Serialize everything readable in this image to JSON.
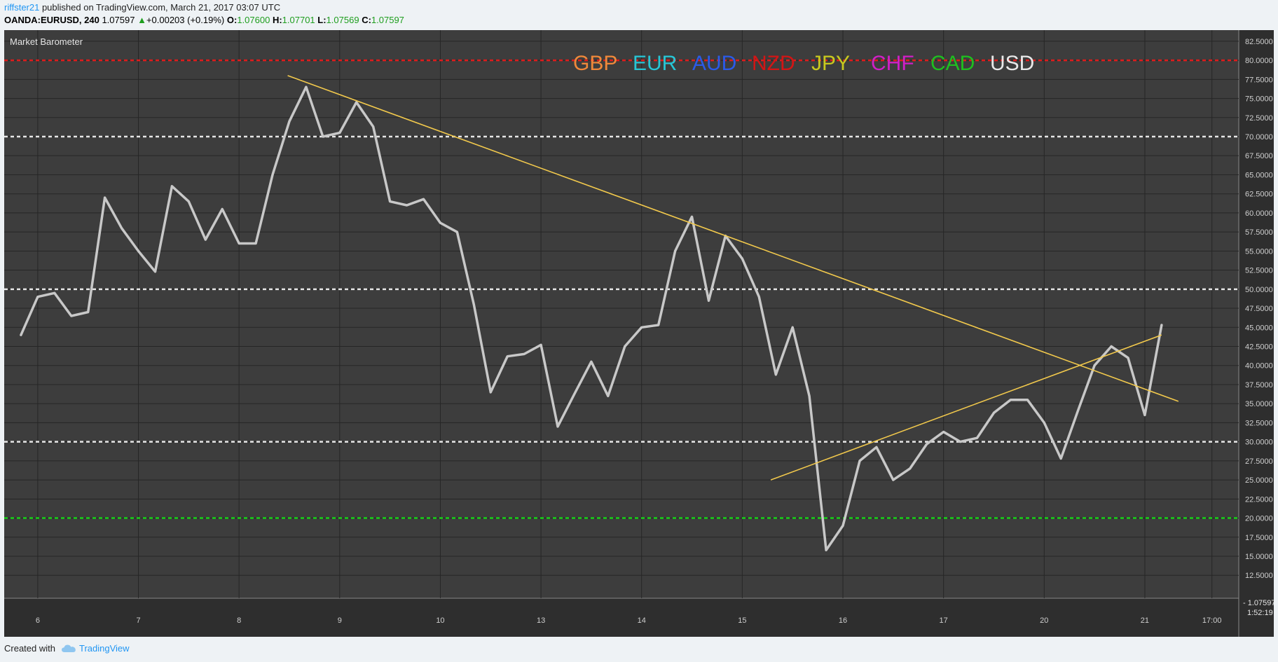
{
  "header": {
    "user": "riffster21",
    "published_text": " published on TradingView.com, March 21, 2017 03:07 UTC"
  },
  "quote": {
    "symbol": "OANDA:EURUSD, 240",
    "price": "1.07597",
    "change": "+0.00203 (+0.19%)",
    "open_label": "O:",
    "open": "1.07600",
    "high_label": "H:",
    "high": "1.07701",
    "low_label": "L:",
    "low": "1.07569",
    "close_label": "C:",
    "close": "1.07597"
  },
  "footer": {
    "created_with": "Created with",
    "brand": "TradingView"
  },
  "chart_data": {
    "type": "line",
    "title": "Market Barometer",
    "ylim": [
      12.5,
      83.5
    ],
    "grid": true,
    "y_ticks": [
      "12.5000",
      "15.0000",
      "17.5000",
      "20.0000",
      "22.5000",
      "25.0000",
      "27.5000",
      "30.0000",
      "32.5000",
      "35.0000",
      "37.5000",
      "40.0000",
      "42.5000",
      "45.0000",
      "47.5000",
      "50.0000",
      "52.5000",
      "55.0000",
      "57.5000",
      "60.0000",
      "62.5000",
      "65.0000",
      "67.5000",
      "70.0000",
      "72.5000",
      "75.0000",
      "77.5000",
      "80.0000",
      "82.5000"
    ],
    "x_ticks": [
      {
        "label": "6",
        "x": 1
      },
      {
        "label": "7",
        "x": 7
      },
      {
        "label": "8",
        "x": 13
      },
      {
        "label": "9",
        "x": 19
      },
      {
        "label": "10",
        "x": 25
      },
      {
        "label": "13",
        "x": 31
      },
      {
        "label": "14",
        "x": 37
      },
      {
        "label": "15",
        "x": 43
      },
      {
        "label": "16",
        "x": 49
      },
      {
        "label": "17",
        "x": 55
      },
      {
        "label": "20",
        "x": 61
      },
      {
        "label": "21",
        "x": 67
      },
      {
        "label": "17:00",
        "x": 71
      }
    ],
    "x_range": [
      -1,
      72.6
    ],
    "legend": [
      {
        "name": "GBP",
        "color": "#f0883a"
      },
      {
        "name": "EUR",
        "color": "#27c6d6"
      },
      {
        "name": "AUD",
        "color": "#2b5ae8"
      },
      {
        "name": "NZD",
        "color": "#d31515"
      },
      {
        "name": "JPY",
        "color": "#c8c81e"
      },
      {
        "name": "CHF",
        "color": "#d11fc7"
      },
      {
        "name": "CAD",
        "color": "#1fbf1f"
      },
      {
        "name": "USD",
        "color": "#e8e8e8"
      }
    ],
    "price_marker": "1.07597",
    "time_marker": "1:52:19",
    "series": [
      {
        "color": "#c8c8c8",
        "values": [
          44,
          49,
          49.5,
          46.5,
          47,
          62,
          58,
          55,
          52.3,
          63.5,
          61.5,
          56.5,
          60.5,
          56,
          56,
          65,
          72,
          76.5,
          70,
          70.5,
          74.5,
          71.3,
          61.5,
          61,
          61.8,
          58.7,
          57.5,
          48,
          36.5,
          41.2,
          41.5,
          42.7,
          32,
          36.3,
          40.5,
          36,
          42.5,
          45,
          45.3,
          55,
          59.5,
          48.5,
          57,
          54,
          49,
          38.8,
          45,
          36,
          15.8,
          19,
          27.5,
          29.3,
          25,
          26.5,
          29.7,
          31.3,
          30,
          30.5,
          33.8,
          35.5,
          35.5,
          32.5,
          27.8,
          34,
          40,
          42.5,
          41,
          33.5,
          45.3
        ]
      }
    ],
    "reference_lines": [
      {
        "y": 80,
        "color": "#e01b1b"
      },
      {
        "y": 70,
        "color": "#e6e6e6"
      },
      {
        "y": 50,
        "color": "#e6e6e6"
      },
      {
        "y": 30,
        "color": "#e6e6e6"
      },
      {
        "y": 20,
        "color": "#17d017"
      }
    ],
    "trendlines": [
      {
        "x1": 15.9,
        "y1": 78,
        "x2": 69,
        "y2": 35.3,
        "color": "#f2c94c"
      },
      {
        "x1": 44.7,
        "y1": 25,
        "x2": 68,
        "y2": 44,
        "color": "#f2c94c"
      }
    ]
  }
}
